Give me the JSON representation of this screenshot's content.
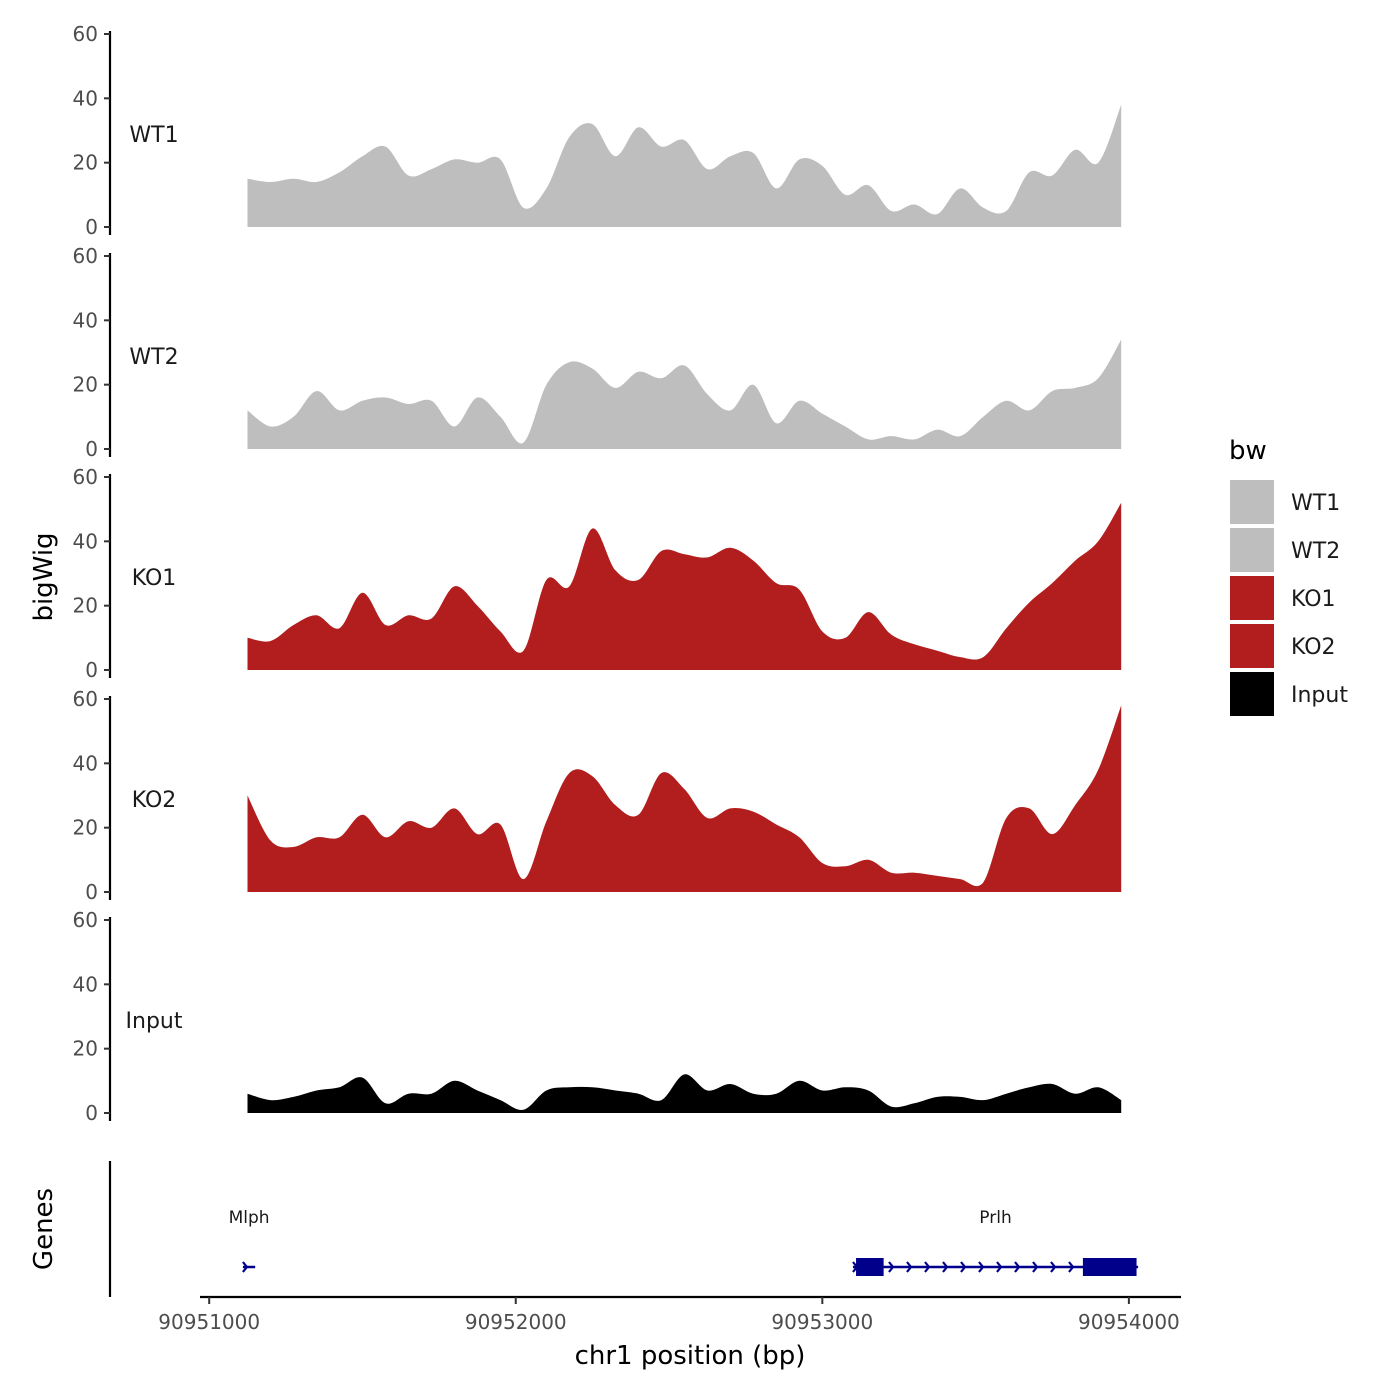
{
  "chart_data": {
    "type": "area",
    "xlabel": "chr1 position (bp)",
    "ylabel": "bigWig",
    "xlim": [
      90950970,
      90954170
    ],
    "x_ticks": [
      90951000,
      90952000,
      90953000,
      90954000
    ],
    "x_tick_labels": [
      "90951000",
      "90952000",
      "90953000",
      "90954000"
    ],
    "ylim": [
      0,
      60
    ],
    "y_ticks": [
      0,
      20,
      40,
      60
    ],
    "y_tick_labels": [
      "0",
      "20",
      "40",
      "60"
    ],
    "x": [
      90951125,
      90951200,
      90951275,
      90951350,
      90951425,
      90951500,
      90951575,
      90951650,
      90951725,
      90951800,
      90951875,
      90951950,
      90952025,
      90952100,
      90952175,
      90952250,
      90952325,
      90952400,
      90952475,
      90952550,
      90952625,
      90952700,
      90952775,
      90952850,
      90952925,
      90953000,
      90953075,
      90953150,
      90953225,
      90953300,
      90953375,
      90953450,
      90953525,
      90953600,
      90953675,
      90953750,
      90953825,
      90953900,
      90953975
    ],
    "series": [
      {
        "name": "WT1",
        "color": "#bebebe",
        "values": [
          15,
          14,
          15,
          14,
          17,
          22,
          25,
          16,
          18,
          21,
          20,
          21,
          6,
          12,
          28,
          32,
          22,
          31,
          25,
          27,
          18,
          22,
          23,
          12,
          21,
          19,
          10,
          13,
          5,
          7,
          4,
          12,
          6,
          5,
          17,
          16,
          24,
          20,
          38
        ]
      },
      {
        "name": "WT2",
        "color": "#bebebe",
        "values": [
          12,
          7,
          10,
          18,
          12,
          15,
          16,
          14,
          15,
          7,
          16,
          10,
          2,
          20,
          27,
          25,
          19,
          24,
          22,
          26,
          17,
          12,
          20,
          8,
          15,
          11,
          7,
          3,
          4,
          3,
          6,
          4,
          10,
          15,
          12,
          18,
          19,
          22,
          34
        ]
      },
      {
        "name": "KO1",
        "color": "#b21e1e",
        "values": [
          10,
          9,
          14,
          17,
          13,
          24,
          14,
          17,
          16,
          26,
          20,
          12,
          6,
          28,
          26,
          44,
          31,
          28,
          37,
          36,
          35,
          38,
          34,
          27,
          25,
          12,
          10,
          18,
          11,
          8,
          6,
          4,
          4,
          13,
          21,
          27,
          34,
          40,
          52
        ]
      },
      {
        "name": "KO2",
        "color": "#b21e1e",
        "values": [
          30,
          16,
          14,
          17,
          17,
          24,
          17,
          22,
          20,
          26,
          18,
          21,
          4,
          22,
          37,
          36,
          27,
          24,
          37,
          32,
          23,
          26,
          25,
          21,
          17,
          9,
          8,
          10,
          6,
          6,
          5,
          4,
          3,
          23,
          26,
          18,
          27,
          38,
          58
        ]
      },
      {
        "name": "Input",
        "color": "#000000",
        "values": [
          6,
          4,
          5,
          7,
          8,
          11,
          3,
          6,
          6,
          10,
          7,
          4,
          1,
          7,
          8,
          8,
          7,
          6,
          4,
          12,
          7,
          9,
          6,
          6,
          10,
          7,
          8,
          7,
          2,
          3,
          5,
          5,
          4,
          6,
          8,
          9,
          6,
          8,
          4
        ]
      }
    ],
    "genes": {
      "label": "Genes",
      "items": [
        {
          "name": "Mlph",
          "start": 90951110,
          "end": 90951150,
          "strand": "+",
          "exons": []
        },
        {
          "name": "Prlh",
          "start": 90953100,
          "end": 90954030,
          "strand": "+",
          "exons": [
            [
              90953110,
              90953200
            ],
            [
              90953850,
              90954025
            ]
          ]
        }
      ]
    },
    "legend": {
      "title": "bw",
      "position": "right",
      "entries": [
        {
          "label": "WT1",
          "color": "#bebebe"
        },
        {
          "label": "WT2",
          "color": "#bebebe"
        },
        {
          "label": "KO1",
          "color": "#b21e1e"
        },
        {
          "label": "KO2",
          "color": "#b21e1e"
        },
        {
          "label": "Input",
          "color": "#000000"
        }
      ]
    },
    "gene_color": "#00008b",
    "grid": false
  }
}
